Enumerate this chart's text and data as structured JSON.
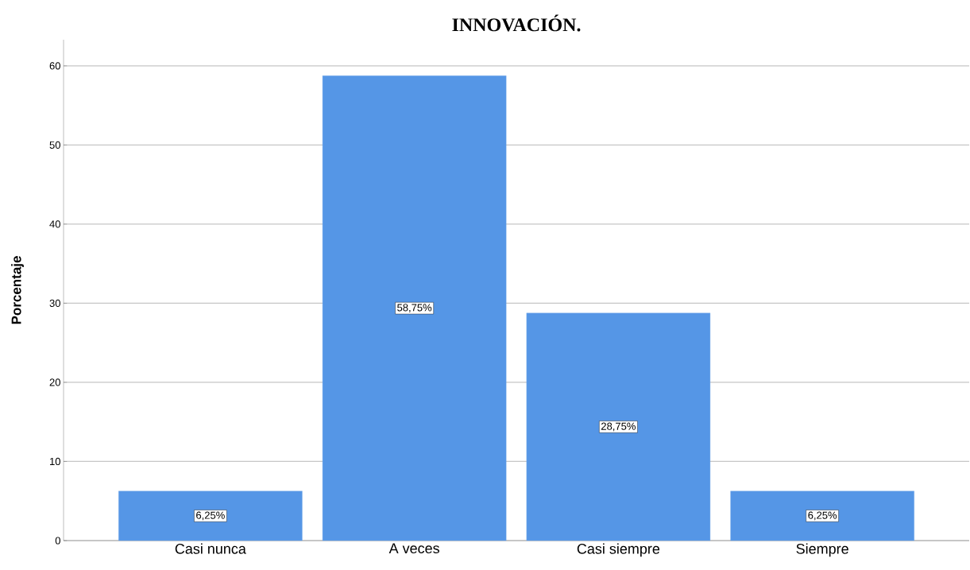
{
  "chart_data": {
    "type": "bar",
    "title": "INNOVACIÓN.",
    "ylabel": "Porcentaje",
    "categories": [
      "Casi nunca",
      "A veces",
      "Casi siempre",
      "Siempre"
    ],
    "values": [
      6.25,
      58.75,
      28.75,
      6.25
    ],
    "value_labels": [
      "6,25%",
      "58,75%",
      "28,75%",
      "6,25%"
    ],
    "color": "#5596e6",
    "ylim": [
      0,
      63.3
    ],
    "yticks": [
      0,
      10,
      20,
      30,
      40,
      50,
      60
    ],
    "grid": "y"
  }
}
